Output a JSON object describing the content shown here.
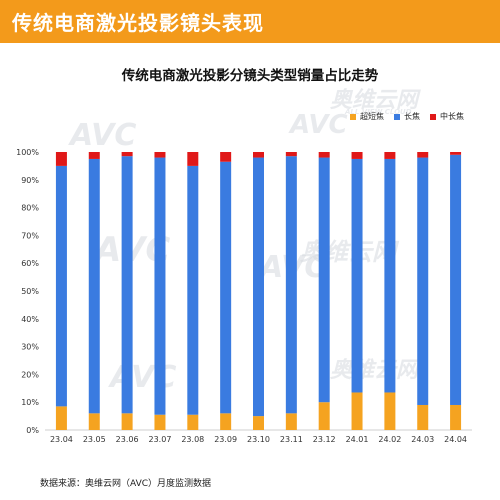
{
  "banner": {
    "title": "传统电商激光投影镜头表现"
  },
  "watermark": {
    "logo": "AVC",
    "brand_cn": "奥维云网",
    "brand_en": "ALL VIEW CLOUD"
  },
  "source": "数据来源：奥维云网（AVC）月度监测数据",
  "colors": {
    "banner": "#f39a1b",
    "ultra_short": "#f5a320",
    "long": "#3a7be0",
    "mid_long": "#e01818"
  },
  "chart_data": {
    "type": "bar",
    "stacked": true,
    "title": "传统电商激光投影分镜头类型销量占比走势",
    "xlabel": "",
    "ylabel": "",
    "ylim": [
      0,
      100
    ],
    "y_ticks": [
      "0%",
      "10%",
      "20%",
      "30%",
      "40%",
      "50%",
      "60%",
      "70%",
      "80%",
      "90%",
      "100%"
    ],
    "legend_position": "top-right",
    "grid": false,
    "categories": [
      "23.04",
      "23.05",
      "23.06",
      "23.07",
      "23.08",
      "23.09",
      "23.10",
      "23.11",
      "23.12",
      "24.01",
      "24.02",
      "24.03",
      "24.04"
    ],
    "series": [
      {
        "name": "超短焦",
        "color": "#f5a320",
        "values": [
          8.5,
          6,
          6,
          5.5,
          5.5,
          6,
          5,
          6,
          10,
          13.5,
          13.5,
          9,
          9
        ]
      },
      {
        "name": "长焦",
        "color": "#3a7be0",
        "values": [
          86.5,
          91.5,
          92.5,
          92.5,
          89.5,
          90.5,
          93,
          92.5,
          88,
          84,
          84,
          89,
          90
        ]
      },
      {
        "name": "中长焦",
        "color": "#e01818",
        "values": [
          5,
          2.5,
          1.5,
          2,
          5,
          3.5,
          2,
          1.5,
          2,
          2.5,
          2.5,
          2,
          1
        ]
      }
    ]
  }
}
